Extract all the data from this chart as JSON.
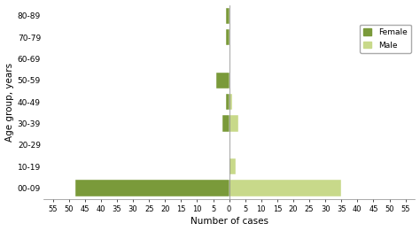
{
  "age_groups": [
    "00-09",
    "10-19",
    "20-29",
    "30-39",
    "40-49",
    "50-59",
    "60-69",
    "70-79",
    "80-89"
  ],
  "female_cases": [
    48,
    0,
    0,
    2,
    1,
    4,
    0,
    1,
    1
  ],
  "male_cases": [
    35,
    2,
    0,
    3,
    1,
    0,
    0,
    0,
    0
  ],
  "female_color": "#7a9a3a",
  "male_color": "#c8d98a",
  "xlabel": "Number of cases",
  "ylabel": "Age group, years",
  "xtick_labels": [
    "55",
    "50",
    "45",
    "40",
    "35",
    "30",
    "25",
    "20",
    "15",
    "10",
    "5",
    "0",
    "5",
    "10",
    "15",
    "20",
    "25",
    "30",
    "35",
    "40",
    "45",
    "50",
    "55"
  ],
  "xtick_values": [
    -55,
    -50,
    -45,
    -40,
    -35,
    -30,
    -25,
    -20,
    -15,
    -10,
    -5,
    0,
    5,
    10,
    15,
    20,
    25,
    30,
    35,
    40,
    45,
    50,
    55
  ],
  "xlim": [
    -58,
    58
  ],
  "ylim": [
    -0.5,
    8.5
  ],
  "legend_labels": [
    "Female",
    "Male"
  ],
  "background_color": "#ffffff",
  "figsize": [
    4.74,
    2.61
  ],
  "dpi": 100
}
